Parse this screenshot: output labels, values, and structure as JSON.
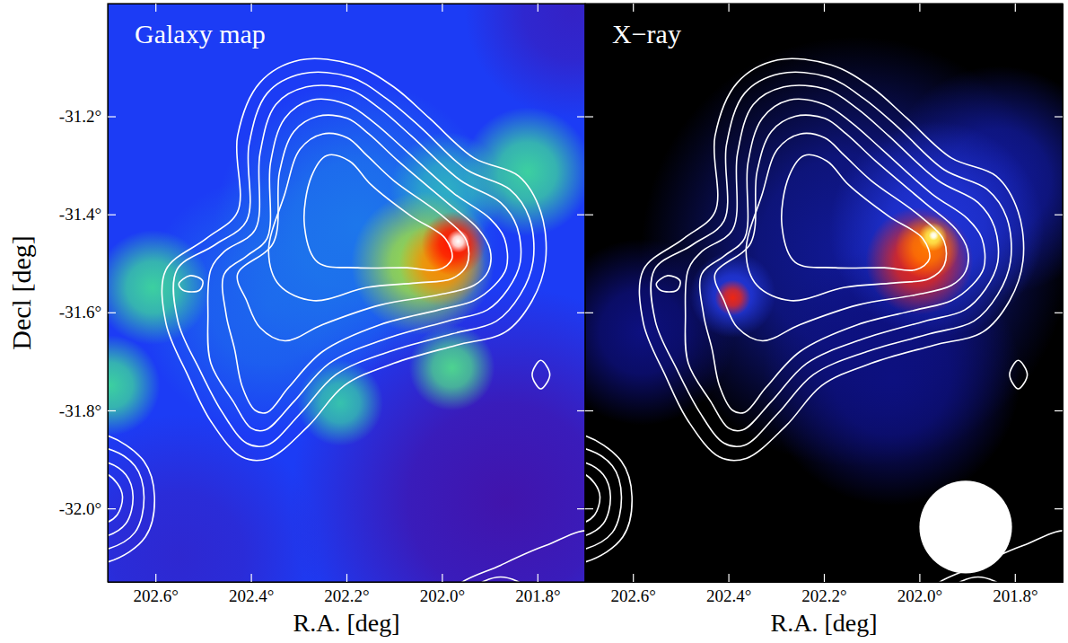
{
  "chart_data": [
    {
      "type": "heatmap",
      "title": "Galaxy map",
      "xlabel": "R.A. [deg]",
      "ylabel": "Decl [deg]",
      "color": "#1c3cf5",
      "xlim": [
        202.7,
        201.7
      ],
      "ylim": [
        -32.15,
        -30.97
      ],
      "xticks": [
        {
          "value": 202.6,
          "label": "202.6°"
        },
        {
          "value": 202.4,
          "label": "202.4°"
        },
        {
          "value": 202.2,
          "label": "202.2°"
        },
        {
          "value": 202.0,
          "label": "202.0°"
        },
        {
          "value": 201.8,
          "label": "201.8°"
        }
      ],
      "yticks": [
        {
          "value": -31.2,
          "label": "-31.2°"
        },
        {
          "value": -31.4,
          "label": "-31.4°"
        },
        {
          "value": -31.6,
          "label": "-31.6°"
        },
        {
          "value": -31.8,
          "label": "-31.8°"
        },
        {
          "value": -32.0,
          "label": "-32.0°"
        }
      ],
      "tick_labels": true,
      "sources": {
        "x": [
          201.867,
          201.727,
          202.55,
          202.363,
          202.176,
          201.989,
          202.213,
          202.606,
          202.695,
          201.821,
          201.979,
          202.04,
          202.0,
          201.975,
          201.966
        ],
        "y": [
          -31.985,
          -30.985,
          -32.1,
          -31.585,
          -31.422,
          -31.349,
          -31.785,
          -31.549,
          -31.749,
          -31.313,
          -31.713,
          -31.5,
          -31.5,
          -31.46,
          -31.455
        ],
        "size": [
          0.3,
          0.15,
          0.2,
          0.18,
          0.2,
          0.08,
          0.06,
          0.08,
          0.07,
          0.09,
          0.06,
          0.1,
          0.06,
          0.045,
          0.016
        ],
        "values": [
          0.05,
          0.12,
          0.15,
          0.33,
          0.36,
          0.45,
          0.48,
          0.5,
          0.5,
          0.5,
          0.52,
          0.62,
          0.8,
          0.92,
          1.0
        ]
      }
    },
    {
      "type": "heatmap",
      "title": "X−ray",
      "xlabel": "R.A. [deg]",
      "color": "#000000",
      "xlim": [
        202.7,
        201.7
      ],
      "ylim": [
        -32.15,
        -30.97
      ],
      "xticks": [
        {
          "value": 202.6,
          "label": "202.6°"
        },
        {
          "value": 202.4,
          "label": "202.4°"
        },
        {
          "value": 202.2,
          "label": "202.2°"
        },
        {
          "value": 202.0,
          "label": "202.0°"
        },
        {
          "value": 201.8,
          "label": "201.8°"
        }
      ],
      "yticks": [
        -31.2,
        -31.4,
        -31.6,
        -31.8,
        -32
      ],
      "tick_labels": "x",
      "sources": {
        "x": [
          202.133,
          201.834,
          202.581,
          202.058,
          201.964,
          202.391,
          202.0,
          202.391,
          201.983,
          201.972,
          201.97
        ],
        "y": [
          -31.476,
          -31.331,
          -31.64,
          -31.731,
          -31.43,
          -31.564,
          -31.495,
          -31.57,
          -31.467,
          -31.446,
          -31.443
        ],
        "size": [
          0.3,
          0.16,
          0.13,
          0.18,
          0.15,
          0.06,
          0.075,
          0.025,
          0.045,
          0.02,
          0.007
        ],
        "values": [
          0.3,
          0.3,
          0.27,
          0.27,
          0.4,
          0.42,
          0.72,
          0.72,
          0.86,
          0.96,
          1.0
        ]
      },
      "beam": {
        "x": 201.903,
        "y": -32.038,
        "size": 0.097
      }
    }
  ],
  "contours": [
    {
      "x": [
        202.578,
        202.493,
        202.428,
        202.428,
        202.381,
        202.297,
        202.185,
        202.101,
        202.026,
        201.933,
        201.839,
        201.793,
        201.783,
        201.811,
        201.867,
        201.97,
        202.101,
        202.204,
        202.279,
        202.363,
        202.419,
        202.484,
        202.531,
        202.578
      ],
      "y": [
        -31.513,
        -31.449,
        -31.395,
        -31.24,
        -31.131,
        -31.085,
        -31.095,
        -31.14,
        -31.204,
        -31.285,
        -31.322,
        -31.395,
        -31.495,
        -31.576,
        -31.64,
        -31.667,
        -31.704,
        -31.749,
        -31.831,
        -31.898,
        -31.895,
        -31.822,
        -31.731,
        -31.622
      ]
    },
    {
      "x": [
        202.555,
        202.475,
        202.409,
        202.404,
        202.366,
        202.292,
        202.191,
        202.116,
        202.045,
        201.948,
        201.858,
        201.817,
        201.809,
        201.836,
        201.886,
        201.979,
        202.11,
        202.222,
        202.297,
        202.366,
        202.409,
        202.46,
        202.508,
        202.553
      ],
      "y": [
        -31.513,
        -31.462,
        -31.413,
        -31.258,
        -31.153,
        -31.113,
        -31.12,
        -31.164,
        -31.222,
        -31.309,
        -31.349,
        -31.407,
        -31.495,
        -31.564,
        -31.618,
        -31.644,
        -31.68,
        -31.727,
        -31.807,
        -31.871,
        -31.867,
        -31.804,
        -31.716,
        -31.618
      ]
    },
    {
      "x": [
        202.484,
        202.456,
        202.391,
        202.381,
        202.348,
        202.284,
        202.194,
        202.129,
        202.064,
        201.961,
        201.877,
        201.843,
        201.836,
        201.862,
        201.905,
        201.989,
        202.12,
        202.236,
        202.31,
        202.37,
        202.4,
        202.437,
        202.484,
        202.49
      ],
      "y": [
        -31.513,
        -31.476,
        -31.431,
        -31.276,
        -31.176,
        -31.14,
        -31.145,
        -31.185,
        -31.24,
        -31.331,
        -31.376,
        -31.425,
        -31.498,
        -31.553,
        -31.595,
        -31.618,
        -31.655,
        -31.704,
        -31.782,
        -31.84,
        -31.836,
        -31.782,
        -31.704,
        -31.607
      ]
    },
    {
      "x": [
        202.456,
        202.409,
        202.366,
        202.359,
        202.329,
        202.273,
        202.198,
        202.142,
        202.079,
        201.974,
        201.899,
        201.869,
        201.865,
        201.89,
        201.933,
        202.007,
        202.129,
        202.25,
        202.321,
        202.366,
        202.391,
        202.419,
        202.434,
        202.452
      ],
      "y": [
        -31.522,
        -31.485,
        -31.449,
        -31.295,
        -31.204,
        -31.167,
        -31.176,
        -31.213,
        -31.267,
        -31.358,
        -31.409,
        -31.449,
        -31.509,
        -31.545,
        -31.576,
        -31.595,
        -31.625,
        -31.68,
        -31.753,
        -31.804,
        -31.8,
        -31.749,
        -31.676,
        -31.604
      ]
    },
    {
      "x": [
        202.428,
        202.353,
        202.34,
        202.31,
        202.26,
        202.198,
        202.153,
        202.092,
        201.989,
        201.923,
        201.899,
        201.903,
        201.933,
        202.007,
        202.129,
        202.25,
        202.329,
        202.381,
        202.409
      ],
      "y": [
        -31.522,
        -31.458,
        -31.313,
        -31.231,
        -31.2,
        -31.204,
        -31.236,
        -31.291,
        -31.376,
        -31.431,
        -31.473,
        -31.516,
        -31.545,
        -31.564,
        -31.585,
        -31.625,
        -31.658,
        -31.631,
        -31.576
      ]
    },
    {
      "x": [
        202.363,
        202.329,
        202.297,
        202.25,
        202.198,
        202.157,
        202.101,
        201.998,
        201.948,
        201.948,
        201.979,
        202.054,
        202.157,
        202.269,
        202.34
      ],
      "y": [
        -31.476,
        -31.358,
        -31.267,
        -31.236,
        -31.244,
        -31.28,
        -31.331,
        -31.404,
        -31.455,
        -31.504,
        -31.531,
        -31.54,
        -31.549,
        -31.576,
        -31.545
      ]
    },
    {
      "x": [
        202.288,
        202.273,
        202.241,
        202.194,
        202.148,
        202.064,
        201.993,
        201.979,
        202.007,
        202.073,
        202.176,
        202.26
      ],
      "y": [
        -31.422,
        -31.322,
        -31.28,
        -31.291,
        -31.34,
        -31.404,
        -31.449,
        -31.491,
        -31.513,
        -31.509,
        -31.509,
        -31.498
      ]
    },
    {
      "x": [
        202.551,
        202.527,
        202.501,
        202.508,
        202.542
      ],
      "y": [
        -31.542,
        -31.525,
        -31.536,
        -31.555,
        -31.555
      ]
    },
    {
      "x": [
        201.811,
        201.793,
        201.774,
        201.793
      ],
      "y": [
        -31.727,
        -31.698,
        -31.727,
        -31.756
      ]
    },
    {
      "x": [
        202.708,
        202.624,
        202.602,
        202.621,
        202.699,
        202.811,
        202.811
      ],
      "y": [
        -31.849,
        -31.904,
        -31.976,
        -32.058,
        -32.109,
        -32.109,
        -31.849
      ]
    },
    {
      "x": [
        202.708,
        202.643,
        202.624,
        202.643,
        202.708,
        202.811,
        202.811
      ],
      "y": [
        -31.876,
        -31.913,
        -31.976,
        -32.049,
        -32.085,
        -32.085,
        -31.876
      ]
    },
    {
      "x": [
        202.708,
        202.662,
        202.647,
        202.662,
        202.708,
        202.811,
        202.811
      ],
      "y": [
        -31.904,
        -31.931,
        -31.976,
        -32.031,
        -32.058,
        -32.058,
        -31.904
      ]
    },
    {
      "x": [
        202.708,
        202.68,
        202.669,
        202.68,
        202.708,
        202.811,
        202.811
      ],
      "y": [
        -31.927,
        -31.949,
        -31.976,
        -32.013,
        -32.031,
        -32.031,
        -31.927
      ]
    },
    {
      "x": [
        201.979,
        201.877,
        201.783,
        201.68,
        201.615,
        202.026
      ],
      "y": [
        -32.167,
        -32.116,
        -32.076,
        -32.049,
        -32.276,
        -32.276
      ]
    },
    {
      "x": [
        201.933,
        201.877,
        201.821,
        201.877
      ],
      "y": [
        -32.167,
        -32.14,
        -32.167,
        -32.24
      ]
    }
  ]
}
